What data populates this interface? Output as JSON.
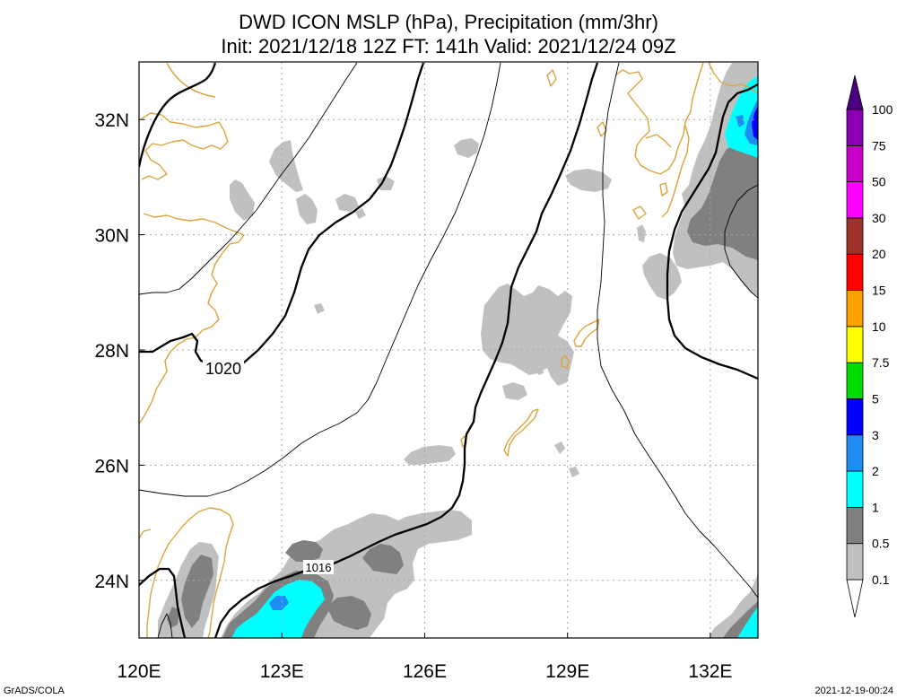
{
  "title": {
    "line1": "DWD ICON MSLP (hPa), Precipitation (mm/3hr)",
    "line2": "Init: 2021/12/18 12Z  FT: 141h  Valid: 2021/12/24 09Z"
  },
  "map": {
    "lon_range": [
      120,
      133
    ],
    "lat_range": [
      23,
      33
    ],
    "lon_ticks": [
      {
        "value": 120,
        "label": "120E"
      },
      {
        "value": 123,
        "label": "123E"
      },
      {
        "value": 126,
        "label": "126E"
      },
      {
        "value": 129,
        "label": "129E"
      },
      {
        "value": 132,
        "label": "132E"
      }
    ],
    "lat_ticks": [
      {
        "value": 24,
        "label": "24N"
      },
      {
        "value": 26,
        "label": "26N"
      },
      {
        "value": 28,
        "label": "28N"
      },
      {
        "value": 30,
        "label": "30N"
      },
      {
        "value": 32,
        "label": "32N"
      }
    ],
    "grid": "dotted",
    "coastline_color": "#dca43c",
    "isobar_color": "#000000",
    "isobar_labels": [
      "1020",
      "1016"
    ]
  },
  "colorbar": {
    "placement": "right",
    "levels": [
      "0.1",
      "0.5",
      "1",
      "2",
      "3",
      "5",
      "7.5",
      "10",
      "15",
      "20",
      "30",
      "50",
      "75",
      "100"
    ],
    "colors": [
      "#ffffff",
      "#c0c0c0",
      "#808080",
      "#00ffff",
      "#1e8cf0",
      "#0000ff",
      "#00dc00",
      "#ffff00",
      "#ffa000",
      "#ff0000",
      "#a0302a",
      "#ff00ff",
      "#c800c8",
      "#8c00b4",
      "#4b0082"
    ]
  },
  "footer": {
    "left": "GrADS/COLA",
    "right": "2021-12-19-00:24"
  }
}
